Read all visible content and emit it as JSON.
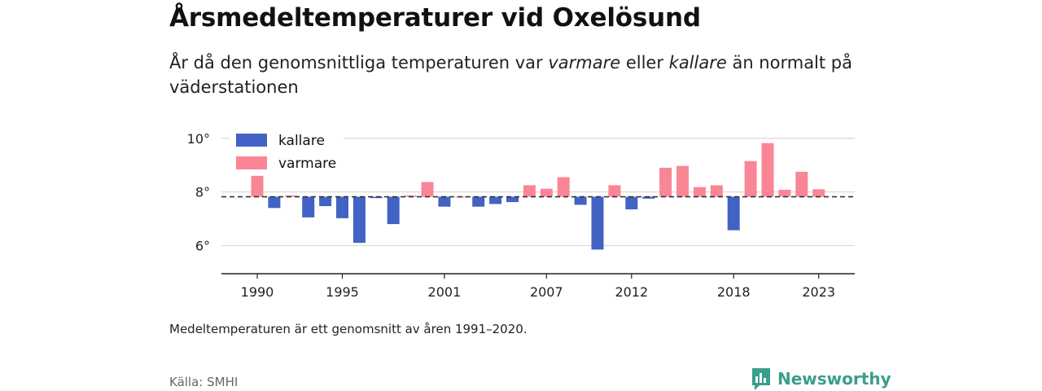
{
  "title": "Årsmedeltemperaturer vid Oxelösund",
  "subtitle": {
    "part1": "År då den genomsnittliga temperaturen var ",
    "warmer": "varmare",
    "part2": " eller ",
    "colder": "kallare",
    "part3": " än normalt på väderstationen"
  },
  "note": "Medeltemperaturen är ett genomsnitt av åren 1991–2020.",
  "source": "Källa: SMHI",
  "brand": {
    "name": "Newsworthy",
    "icon": "bar-chart-speech-bubble-icon",
    "color": "#3a9e8c"
  },
  "colors": {
    "cold": "#4263c4",
    "warm": "#f98695",
    "mean_line": "#333333",
    "grid": "#d9d9d9"
  },
  "chart_data": {
    "type": "bar",
    "baseline": 7.82,
    "ylim": [
      4.95,
      10.6
    ],
    "yticks": [
      6,
      8,
      10
    ],
    "ytick_suffix": "°",
    "xticks": [
      1990,
      1995,
      2001,
      2007,
      2012,
      2018,
      2023
    ],
    "legend": {
      "position": "top-left",
      "items": [
        {
          "label": "kallare",
          "color": "#4263c4"
        },
        {
          "label": "varmare",
          "color": "#f98695"
        }
      ]
    },
    "grid": true,
    "x": [
      1990,
      1991,
      1992,
      1993,
      1994,
      1995,
      1996,
      1997,
      1998,
      1999,
      2000,
      2001,
      2002,
      2003,
      2004,
      2005,
      2006,
      2007,
      2008,
      2009,
      2010,
      2011,
      2012,
      2013,
      2014,
      2015,
      2016,
      2017,
      2018,
      2019,
      2020,
      2021,
      2022,
      2023
    ],
    "values": [
      8.6,
      7.4,
      7.87,
      7.05,
      7.47,
      7.02,
      6.1,
      7.77,
      6.8,
      7.87,
      8.37,
      7.45,
      7.82,
      7.45,
      7.55,
      7.62,
      8.25,
      8.12,
      8.55,
      7.52,
      5.85,
      8.25,
      7.35,
      7.75,
      8.9,
      8.97,
      8.18,
      8.25,
      6.57,
      9.15,
      9.82,
      8.08,
      8.75,
      8.1
    ]
  }
}
